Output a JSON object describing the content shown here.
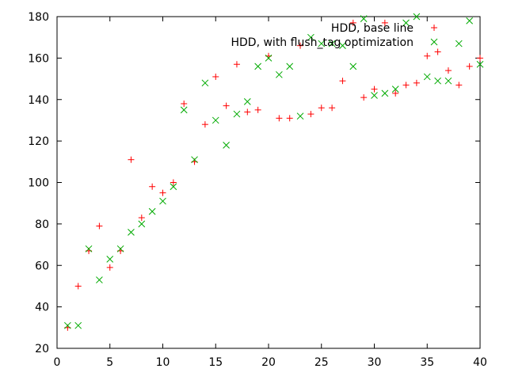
{
  "chart_data": {
    "type": "scatter",
    "title": "",
    "xlabel": "",
    "ylabel": "",
    "xlim": [
      0,
      40
    ],
    "ylim": [
      20,
      180
    ],
    "xticks": [
      0,
      5,
      10,
      15,
      20,
      25,
      30,
      35,
      40
    ],
    "yticks": [
      20,
      40,
      60,
      80,
      100,
      120,
      140,
      160,
      180
    ],
    "grid": false,
    "legend_position": "top-right",
    "series": [
      {
        "name": "HDD, base line",
        "marker": "plus",
        "color": "#ff0000",
        "x": [
          1,
          2,
          3,
          4,
          5,
          6,
          7,
          8,
          9,
          10,
          11,
          12,
          13,
          14,
          15,
          16,
          17,
          18,
          19,
          20,
          21,
          22,
          23,
          24,
          25,
          26,
          27,
          28,
          29,
          30,
          31,
          32,
          33,
          34,
          35,
          36,
          37,
          38,
          39,
          40
        ],
        "y": [
          30,
          50,
          67,
          79,
          59,
          67,
          111,
          83,
          98,
          95,
          100,
          138,
          110,
          128,
          151,
          137,
          157,
          134,
          135,
          161,
          131,
          131,
          166,
          133,
          136,
          136,
          149,
          177,
          141,
          145,
          177,
          143,
          147,
          148,
          161,
          163,
          154,
          147,
          156,
          160
        ]
      },
      {
        "name": "HDD,  with flush_tag optimization",
        "marker": "cross",
        "color": "#00aa00",
        "x": [
          1,
          2,
          3,
          4,
          5,
          6,
          7,
          8,
          9,
          10,
          11,
          12,
          13,
          14,
          15,
          16,
          17,
          18,
          19,
          20,
          21,
          22,
          23,
          24,
          25,
          26,
          27,
          28,
          29,
          30,
          31,
          32,
          33,
          34,
          35,
          36,
          37,
          38,
          39,
          40
        ],
        "y": [
          31,
          31,
          68,
          53,
          63,
          68,
          76,
          80,
          86,
          91,
          98,
          135,
          111,
          148,
          130,
          118,
          133,
          139,
          156,
          160,
          152,
          156,
          132,
          170,
          167,
          167,
          166,
          156,
          179,
          142,
          143,
          145,
          177,
          180,
          151,
          149,
          149,
          167,
          178,
          157
        ]
      }
    ]
  }
}
